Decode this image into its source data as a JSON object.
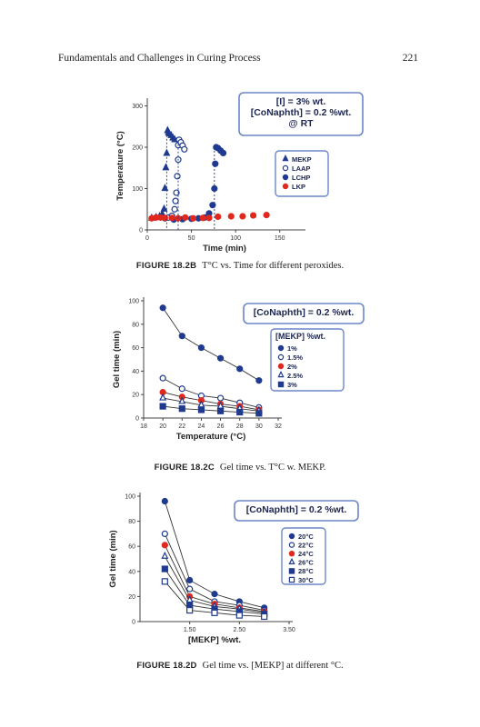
{
  "header": {
    "title": "Fundamentals and Challenges in Curing Process",
    "page_number": "221"
  },
  "figures": [
    {
      "caption_label": "FIGURE 18.2B",
      "caption_text": "T°C vs. Time for different peroxides."
    },
    {
      "caption_label": "FIGURE 18.2C",
      "caption_text": "Gel time vs. T°C w. MEKP."
    },
    {
      "caption_label": "FIGURE 18.2D",
      "caption_text": "Gel time vs. [MEKP] at different °C."
    }
  ],
  "colors": {
    "navy": "#1f3a8f",
    "red": "#e0281e",
    "box_border": "#6c86c8"
  },
  "chart_data": [
    {
      "type": "scatter",
      "xlabel": "Time (min)",
      "ylabel": "Temperature (°C)",
      "xlim": [
        0,
        175
      ],
      "ylim": [
        0,
        310
      ],
      "xticks": [
        "0",
        "50",
        "100",
        "150"
      ],
      "yticks": [
        "0",
        "100",
        "200",
        "300"
      ],
      "annotation": [
        "[I] = 3% wt.",
        "[CoNaphth] = 0.2 %wt.",
        "@ RT"
      ],
      "legend": [
        "MEKP",
        "LAAP",
        "LCHP",
        "LKP"
      ],
      "series": [
        {
          "name": "MEKP",
          "marker": "triangle-filled",
          "color": "#1f3a8f",
          "points": [
            [
              5,
              28
            ],
            [
              10,
              30
            ],
            [
              14,
              32
            ],
            [
              17,
              38
            ],
            [
              19,
              50
            ],
            [
              20,
              100
            ],
            [
              21,
              150
            ],
            [
              22,
              185
            ],
            [
              23,
              240
            ],
            [
              24,
              235
            ],
            [
              25,
              232
            ],
            [
              27,
              228
            ],
            [
              29,
              222
            ],
            [
              31,
              218
            ]
          ]
        },
        {
          "name": "LAAP",
          "marker": "circle-open",
          "color": "#1f3a8f",
          "points": [
            [
              20,
              28
            ],
            [
              24,
              30
            ],
            [
              28,
              34
            ],
            [
              31,
              50
            ],
            [
              32,
              70
            ],
            [
              33,
              90
            ],
            [
              34,
              130
            ],
            [
              35,
              170
            ],
            [
              35,
              205
            ],
            [
              36,
              218
            ],
            [
              38,
              212
            ],
            [
              40,
              204
            ],
            [
              42,
              195
            ]
          ]
        },
        {
          "name": "LCHP",
          "marker": "circle-filled",
          "color": "#1f3a8f",
          "points": [
            [
              30,
              25
            ],
            [
              40,
              26
            ],
            [
              50,
              27
            ],
            [
              58,
              28
            ],
            [
              65,
              30
            ],
            [
              70,
              40
            ],
            [
              74,
              60
            ],
            [
              76,
              100
            ],
            [
              77,
              160
            ],
            [
              78,
              200
            ],
            [
              80,
              198
            ],
            [
              83,
              192
            ],
            [
              86,
              186
            ]
          ]
        },
        {
          "name": "LKP",
          "marker": "circle-filled",
          "color": "#e0281e",
          "points": [
            [
              5,
              28
            ],
            [
              10,
              30
            ],
            [
              15,
              30
            ],
            [
              20,
              29
            ],
            [
              28,
              29
            ],
            [
              35,
              28
            ],
            [
              43,
              30
            ],
            [
              52,
              28
            ],
            [
              63,
              29
            ],
            [
              70,
              29
            ],
            [
              80,
              32
            ],
            [
              95,
              33
            ],
            [
              108,
              33
            ],
            [
              120,
              35
            ],
            [
              135,
              36
            ]
          ]
        }
      ]
    },
    {
      "type": "line",
      "xlabel": "Temperature (°C)",
      "ylabel": "Gel time (min)",
      "xlim": [
        18,
        32
      ],
      "ylim": [
        0,
        100
      ],
      "xticks": [
        "18",
        "20",
        "22",
        "24",
        "26",
        "28",
        "30",
        "32"
      ],
      "yticks": [
        "0",
        "20",
        "40",
        "60",
        "80",
        "100"
      ],
      "annotation": [
        "[CoNaphth] = 0.2 %wt."
      ],
      "legend_title": "[MEKP] %wt.",
      "legend": [
        "1%",
        "1.5%",
        "2%",
        "2.5%",
        "3%"
      ],
      "x": [
        20,
        22,
        24,
        26,
        28,
        30
      ],
      "series": [
        {
          "name": "1%",
          "marker": "circle-filled",
          "color": "#1f3a8f",
          "values": [
            94,
            70,
            60,
            51,
            42,
            32
          ]
        },
        {
          "name": "1.5%",
          "marker": "circle-open",
          "color": "#1f3a8f",
          "values": [
            34,
            25,
            19,
            17,
            13,
            9
          ]
        },
        {
          "name": "2%",
          "marker": "circle-filled",
          "color": "#e0281e",
          "values": [
            22,
            18,
            15,
            12,
            10,
            7
          ]
        },
        {
          "name": "2.5%",
          "marker": "triangle-open",
          "color": "#1f3a8f",
          "values": [
            17,
            14,
            11,
            10,
            8,
            6
          ]
        },
        {
          "name": "3%",
          "marker": "square-filled",
          "color": "#1f3a8f",
          "values": [
            10,
            8,
            7,
            6,
            5,
            4
          ]
        }
      ]
    },
    {
      "type": "line",
      "xlabel": "[MEKP] %wt.",
      "ylabel": "Gel time (min)",
      "xlim": [
        0.5,
        3.5
      ],
      "ylim": [
        0,
        100
      ],
      "xticks": [
        "1.50",
        "2.50",
        "3.50"
      ],
      "xtick_values": [
        1.5,
        2.5,
        3.5
      ],
      "yticks": [
        "0",
        "20",
        "40",
        "60",
        "80",
        "100"
      ],
      "annotation": [
        "[CoNaphth] = 0.2 %wt."
      ],
      "legend": [
        "20°C",
        "22°C",
        "24°C",
        "26°C",
        "28°C",
        "30°C"
      ],
      "x": [
        1,
        1.5,
        2,
        2.5,
        3
      ],
      "series": [
        {
          "name": "20°C",
          "marker": "circle-filled",
          "color": "#1f3a8f",
          "values": [
            96,
            33,
            22,
            16,
            11
          ]
        },
        {
          "name": "22°C",
          "marker": "circle-open",
          "color": "#1f3a8f",
          "values": [
            70,
            26,
            16,
            13,
            9
          ]
        },
        {
          "name": "24°C",
          "marker": "circle-filled",
          "color": "#e0281e",
          "values": [
            61,
            20,
            14,
            11,
            8
          ]
        },
        {
          "name": "26°C",
          "marker": "triangle-open",
          "color": "#1f3a8f",
          "values": [
            52,
            17,
            12,
            10,
            7
          ]
        },
        {
          "name": "28°C",
          "marker": "square-filled",
          "color": "#1f3a8f",
          "values": [
            42,
            13,
            10,
            8,
            6
          ]
        },
        {
          "name": "30°C",
          "marker": "square-open",
          "color": "#1f3a8f",
          "values": [
            32,
            9,
            7,
            5,
            4
          ]
        }
      ]
    }
  ]
}
